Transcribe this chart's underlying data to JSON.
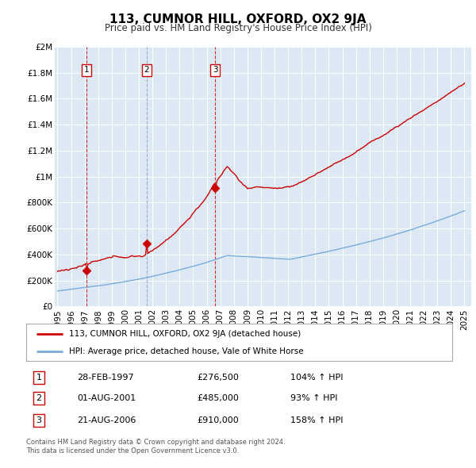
{
  "title": "113, CUMNOR HILL, OXFORD, OX2 9JA",
  "subtitle": "Price paid vs. HM Land Registry's House Price Index (HPI)",
  "legend_property": "113, CUMNOR HILL, OXFORD, OX2 9JA (detached house)",
  "legend_hpi": "HPI: Average price, detached house, Vale of White Horse",
  "sales": [
    {
      "index": 1,
      "date": "28-FEB-1997",
      "year": 1997.16,
      "price": 276500,
      "hpi_pct": "104%"
    },
    {
      "index": 2,
      "date": "01-AUG-2001",
      "year": 2001.58,
      "price": 485000,
      "hpi_pct": "93%"
    },
    {
      "index": 3,
      "date": "21-AUG-2006",
      "year": 2006.63,
      "price": 910000,
      "hpi_pct": "158%"
    }
  ],
  "sale_line_styles": [
    "red_dashed",
    "blue_dashed",
    "red_dashed"
  ],
  "footnote1": "Contains HM Land Registry data © Crown copyright and database right 2024.",
  "footnote2": "This data is licensed under the Open Government Licence v3.0.",
  "property_color": "#cc0000",
  "hpi_color": "#7aabdb",
  "vline_color_red": "#cc0000",
  "vline_color_blue": "#8899bb",
  "background_color": "#dce9f5",
  "plot_bg": "#ffffff",
  "ylim": [
    0,
    2000000
  ],
  "xlim_start": 1994.8,
  "xlim_end": 2025.5,
  "yticks": [
    0,
    200000,
    400000,
    600000,
    800000,
    1000000,
    1200000,
    1400000,
    1600000,
    1800000,
    2000000
  ],
  "ytick_labels": [
    "£0",
    "£200K",
    "£400K",
    "£600K",
    "£800K",
    "£1M",
    "£1.2M",
    "£1.4M",
    "£1.6M",
    "£1.8M",
    "£2M"
  ],
  "xticks": [
    1995,
    1996,
    1997,
    1998,
    1999,
    2000,
    2001,
    2002,
    2003,
    2004,
    2005,
    2006,
    2007,
    2008,
    2009,
    2010,
    2011,
    2012,
    2013,
    2014,
    2015,
    2016,
    2017,
    2018,
    2019,
    2020,
    2021,
    2022,
    2023,
    2024,
    2025
  ]
}
